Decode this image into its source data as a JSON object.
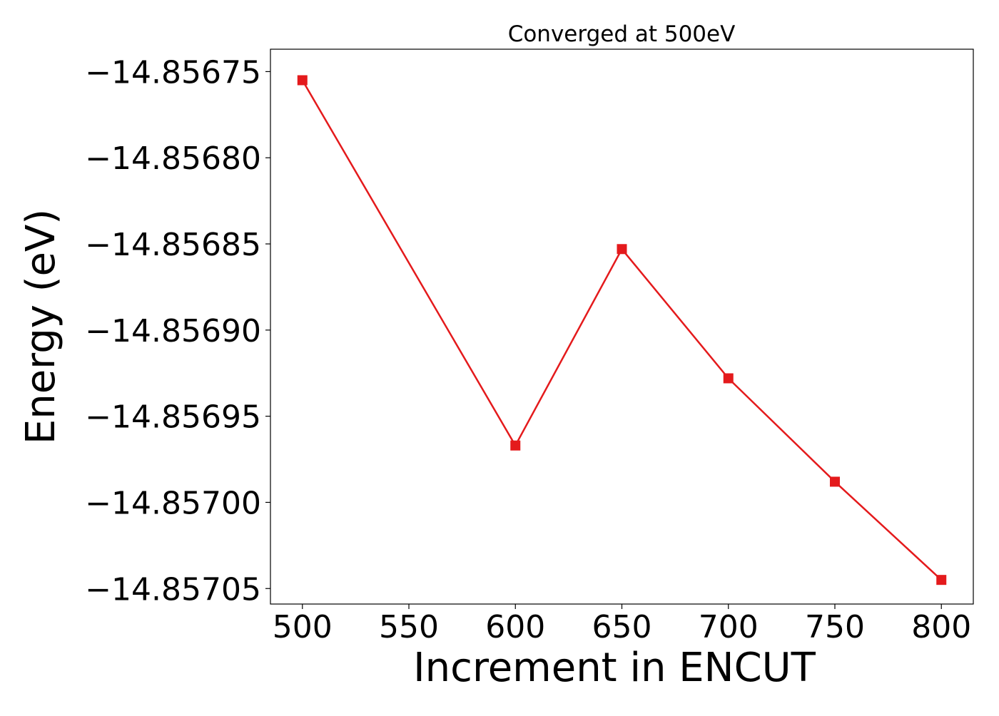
{
  "chart_data": {
    "type": "line",
    "title": "Converged at 500eV",
    "xlabel": "Increment in ENCUT",
    "ylabel": "Energy (eV)",
    "xlim": [
      485,
      815
    ],
    "ylim": [
      -14.857059,
      -14.856737
    ],
    "x_ticks": [
      500,
      550,
      600,
      650,
      700,
      750,
      800
    ],
    "x_tick_labels": [
      "500",
      "550",
      "600",
      "650",
      "700",
      "750",
      "800"
    ],
    "y_ticks": [
      -14.85675,
      -14.8568,
      -14.85685,
      -14.8569,
      -14.85695,
      -14.857,
      -14.85705
    ],
    "y_tick_labels": [
      "−14.85675",
      "−14.85680",
      "−14.85685",
      "−14.85690",
      "−14.85695",
      "−14.85700",
      "−14.85705"
    ],
    "grid": false,
    "series": [
      {
        "x": [
          500,
          600,
          650,
          700,
          750,
          800
        ],
        "y": [
          -14.856755,
          -14.856967,
          -14.856853,
          -14.856928,
          -14.856988,
          -14.857045
        ],
        "color": "#e41a1c",
        "marker": "square"
      }
    ]
  }
}
